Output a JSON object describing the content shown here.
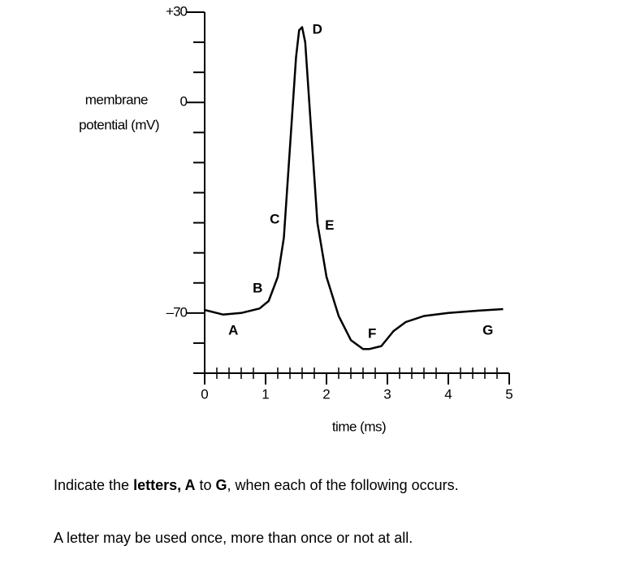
{
  "chart_data": {
    "type": "line",
    "ylabel": [
      "membrane",
      "potential (mV)"
    ],
    "xlabel": "time (ms)",
    "xlim": [
      0,
      5
    ],
    "xticks": [
      0,
      1,
      2,
      3,
      4,
      5
    ],
    "xminor_ticks": [
      0.2,
      0.4,
      0.6,
      0.8,
      1.2,
      1.4,
      1.6,
      1.8,
      2.2,
      2.4,
      2.6,
      2.8,
      3.2,
      3.4,
      3.6,
      3.8,
      4.2,
      4.4,
      4.6,
      4.8
    ],
    "ylim": [
      -90,
      30
    ],
    "yticks": [
      {
        "value": 30,
        "label": "+30"
      },
      0,
      {
        "value": -70,
        "label": "–70"
      }
    ],
    "yminor_ticks": [
      -90,
      -80,
      -60,
      -50,
      -40,
      -30,
      -20,
      -10,
      10,
      20
    ],
    "color": "#000000",
    "x": [
      0,
      0.3,
      0.6,
      0.9,
      1.05,
      1.2,
      1.3,
      1.4,
      1.5,
      1.55,
      1.6,
      1.65,
      1.75,
      1.85,
      2.0,
      2.2,
      2.4,
      2.6,
      2.7,
      2.9,
      3.1,
      3.3,
      3.6,
      4.0,
      4.5,
      4.9
    ],
    "values": [
      -69,
      -70.5,
      -70,
      -68.5,
      -66,
      -58,
      -45,
      -15,
      15,
      24,
      25,
      20,
      -10,
      -40,
      -58,
      -71,
      -79,
      -82,
      -82,
      -81,
      -76,
      -73,
      -71,
      -70,
      -69.2,
      -68.7
    ],
    "annotations": [
      {
        "text": "A",
        "x": 0.47,
        "y": -76
      },
      {
        "text": "B",
        "x": 0.87,
        "y": -62
      },
      {
        "text": "C",
        "x": 1.15,
        "y": -39
      },
      {
        "text": "D",
        "x": 1.85,
        "y": 24
      },
      {
        "text": "E",
        "x": 2.05,
        "y": -41
      },
      {
        "text": "F",
        "x": 2.75,
        "y": -77
      },
      {
        "text": "G",
        "x": 4.65,
        "y": -76
      }
    ]
  },
  "question": {
    "line1": [
      "Indicate the ",
      "letters, A",
      " to ",
      "G",
      ", when each of the following occurs."
    ],
    "line2": "A letter may be used once, more than once or not at all."
  }
}
